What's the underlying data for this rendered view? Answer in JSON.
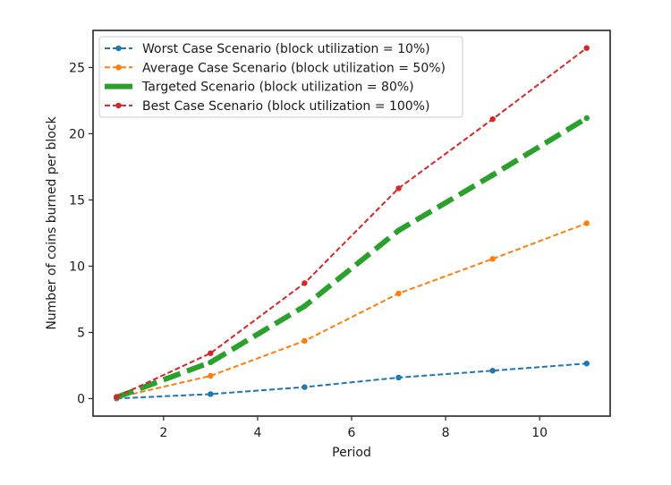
{
  "chart_data": {
    "type": "line",
    "title": "",
    "xlabel": "Period",
    "ylabel": "Number of coins burned per block",
    "xlim": [
      0.5,
      11.5
    ],
    "ylim": [
      -1.32,
      27.8
    ],
    "xticks": [
      2,
      4,
      6,
      8,
      10
    ],
    "yticks": [
      0,
      5,
      10,
      15,
      20,
      25
    ],
    "grid": false,
    "legend_position": "top-left",
    "x": [
      1,
      3,
      5,
      7,
      9,
      11
    ],
    "series": [
      {
        "name": "Worst Case Scenario (block utilization = 10%)",
        "color": "#1f77b4",
        "style": "dashed-dot-marker",
        "values": [
          0.01,
          0.34,
          0.87,
          1.59,
          2.11,
          2.65
        ]
      },
      {
        "name": "Average Case Scenario (block utilization = 50%)",
        "color": "#ff7f0e",
        "style": "dashed-dot-marker",
        "values": [
          0.07,
          1.72,
          4.36,
          7.94,
          10.55,
          13.24
        ]
      },
      {
        "name": "Targeted Scenario (block utilization = 80%)",
        "color": "#2ca02c",
        "style": "thick-dashed",
        "values": [
          0.1,
          2.74,
          6.98,
          12.7,
          16.88,
          21.18
        ]
      },
      {
        "name": "Best Case Scenario (block utilization = 100%)",
        "color": "#d62728",
        "style": "dashed-dot-marker",
        "values": [
          0.13,
          3.43,
          8.72,
          15.88,
          21.1,
          26.47
        ]
      }
    ]
  }
}
